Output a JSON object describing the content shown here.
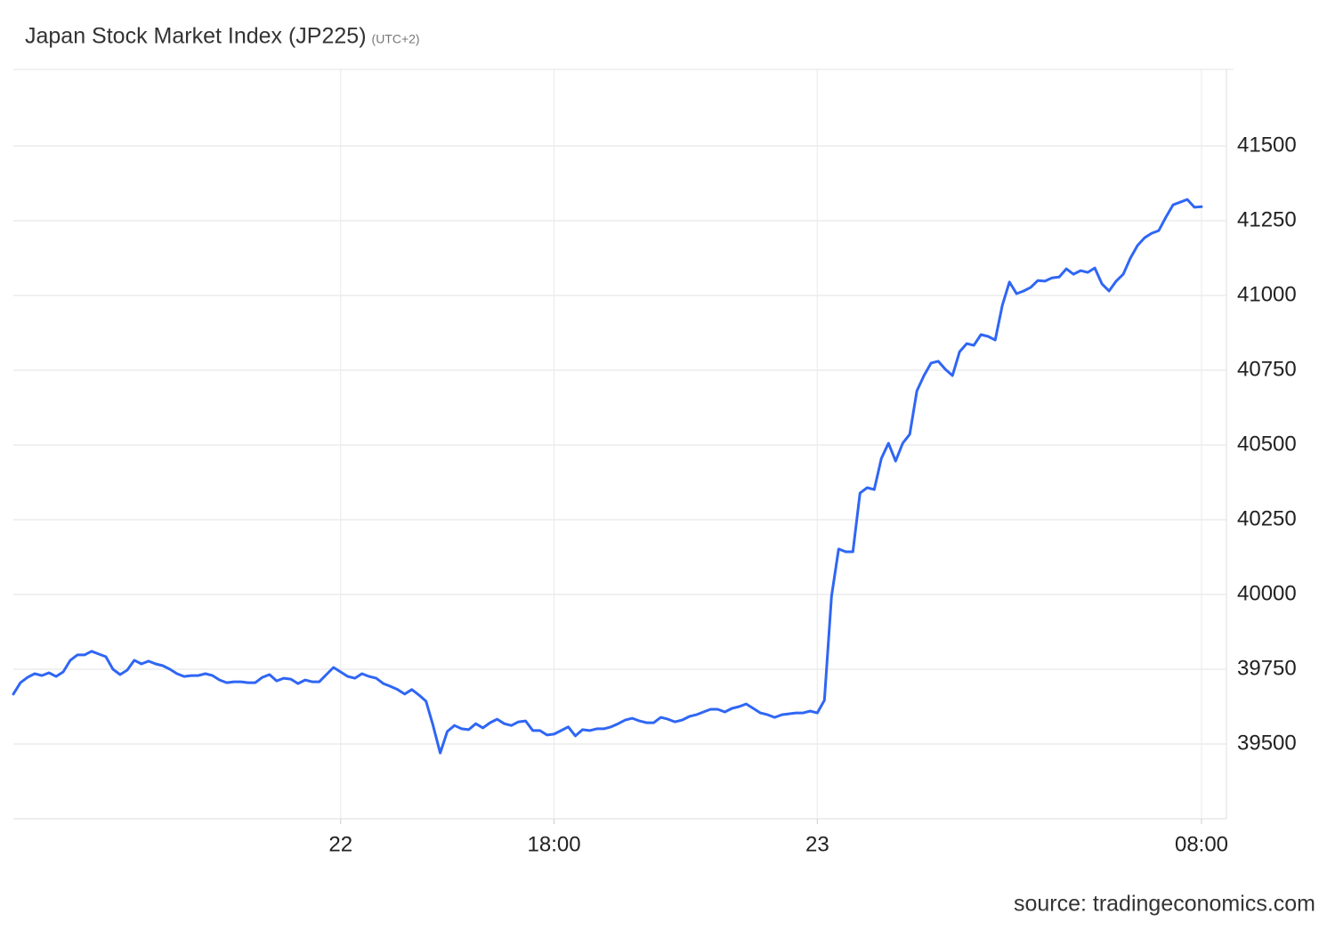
{
  "chart_data": {
    "type": "line",
    "title": "Japan Stock Market Index (JP225)",
    "subtitle": "(UTC+2)",
    "source": "source: tradingeconomics.com",
    "color": "#2f66f4",
    "grid": true,
    "ylim": [
      39250,
      41750
    ],
    "yticks": [
      39500,
      39750,
      40000,
      40250,
      40500,
      40750,
      41000,
      41250,
      41500
    ],
    "categories": [
      null,
      null,
      null,
      null,
      null,
      null,
      null,
      null,
      null,
      null,
      null,
      null,
      null,
      null,
      null,
      null,
      null,
      null,
      null,
      null,
      null,
      null,
      null,
      null,
      null,
      null,
      null,
      null,
      null,
      null,
      null,
      null,
      null,
      null,
      null,
      null,
      null,
      null,
      null,
      null,
      null,
      null,
      null,
      null,
      null,
      null,
      "22",
      null,
      null,
      null,
      null,
      null,
      null,
      null,
      null,
      null,
      null,
      null,
      null,
      null,
      null,
      null,
      null,
      null,
      null,
      null,
      null,
      null,
      null,
      null,
      null,
      null,
      null,
      null,
      null,
      null,
      "18:00",
      null,
      null,
      null,
      null,
      null,
      null,
      null,
      null,
      null,
      null,
      null,
      null,
      null,
      null,
      null,
      null,
      null,
      null,
      null,
      null,
      null,
      null,
      null,
      null,
      null,
      null,
      null,
      null,
      null,
      null,
      null,
      null,
      null,
      null,
      null,
      null,
      "23",
      null,
      null,
      null,
      null,
      null,
      null,
      null,
      null,
      null,
      null,
      null,
      null,
      null,
      null,
      null,
      null,
      null,
      null,
      null,
      null,
      null,
      null,
      null,
      null,
      null,
      null,
      null,
      null,
      null,
      null,
      null,
      null,
      null,
      null,
      null,
      null,
      null,
      null,
      null,
      null,
      null,
      null,
      null,
      null,
      null,
      null,
      null,
      null,
      null,
      null,
      null,
      null,
      null,
      "08:00"
    ],
    "values": [
      39667,
      39705,
      39723,
      39735,
      39729,
      39738,
      39726,
      39741,
      39780,
      39798,
      39798,
      39810,
      39801,
      39792,
      39750,
      39732,
      39747,
      39780,
      39768,
      39777,
      39768,
      39762,
      39750,
      39735,
      39726,
      39729,
      39729,
      39735,
      39729,
      39714,
      39705,
      39708,
      39708,
      39705,
      39705,
      39723,
      39732,
      39711,
      39720,
      39717,
      39702,
      39714,
      39708,
      39708,
      39732,
      39756,
      39741,
      39726,
      39720,
      39735,
      39726,
      39720,
      39702,
      39693,
      39682,
      39667,
      39682,
      39664,
      39643,
      39562,
      39470,
      39542,
      39562,
      39551,
      39548,
      39568,
      39554,
      39571,
      39583,
      39568,
      39562,
      39574,
      39577,
      39545,
      39545,
      39530,
      39533,
      39545,
      39557,
      39527,
      39548,
      39545,
      39551,
      39551,
      39557,
      39568,
      39580,
      39586,
      39577,
      39571,
      39571,
      39589,
      39583,
      39574,
      39580,
      39592,
      39598,
      39607,
      39616,
      39616,
      39607,
      39619,
      39625,
      39634,
      39619,
      39604,
      39598,
      39589,
      39598,
      39601,
      39604,
      39604,
      39610,
      39604,
      39646,
      39994,
      40152,
      40143,
      40143,
      40339,
      40357,
      40351,
      40455,
      40506,
      40446,
      40506,
      40536,
      40681,
      40732,
      40774,
      40780,
      40753,
      40732,
      40812,
      40839,
      40833,
      40869,
      40863,
      40851,
      40967,
      41045,
      41006,
      41015,
      41027,
      41050,
      41048,
      41059,
      41062,
      41089,
      41071,
      41083,
      41077,
      41092,
      41039,
      41015,
      41048,
      41071,
      41125,
      41167,
      41193,
      41208,
      41217,
      41262,
      41303,
      41312,
      41321,
      41295,
      41297
    ]
  }
}
